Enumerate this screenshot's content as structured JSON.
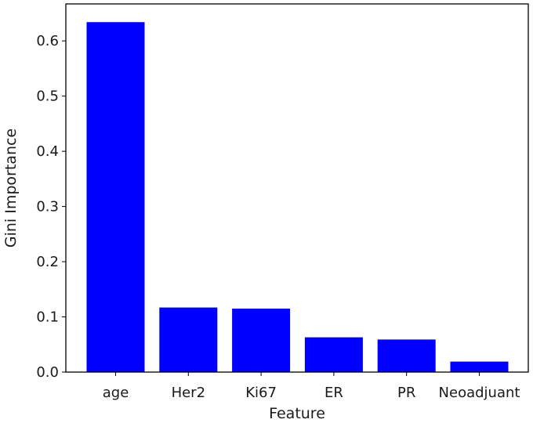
{
  "chart_data": {
    "type": "bar",
    "title": "",
    "xlabel": "Feature",
    "ylabel": "Gini Importance",
    "categories": [
      "age",
      "Her2",
      "Ki67",
      "ER",
      "PR",
      "Neoadjuant"
    ],
    "values": [
      0.634,
      0.117,
      0.115,
      0.063,
      0.059,
      0.019
    ],
    "ylim": [
      0,
      0.667
    ],
    "yticks": [
      0.0,
      0.1,
      0.2,
      0.3,
      0.4,
      0.5,
      0.6
    ],
    "ytick_labels": [
      "0.0",
      "0.1",
      "0.2",
      "0.3",
      "0.4",
      "0.5",
      "0.6"
    ],
    "bar_color": "#0000ff",
    "grid": false,
    "legend": "none"
  }
}
